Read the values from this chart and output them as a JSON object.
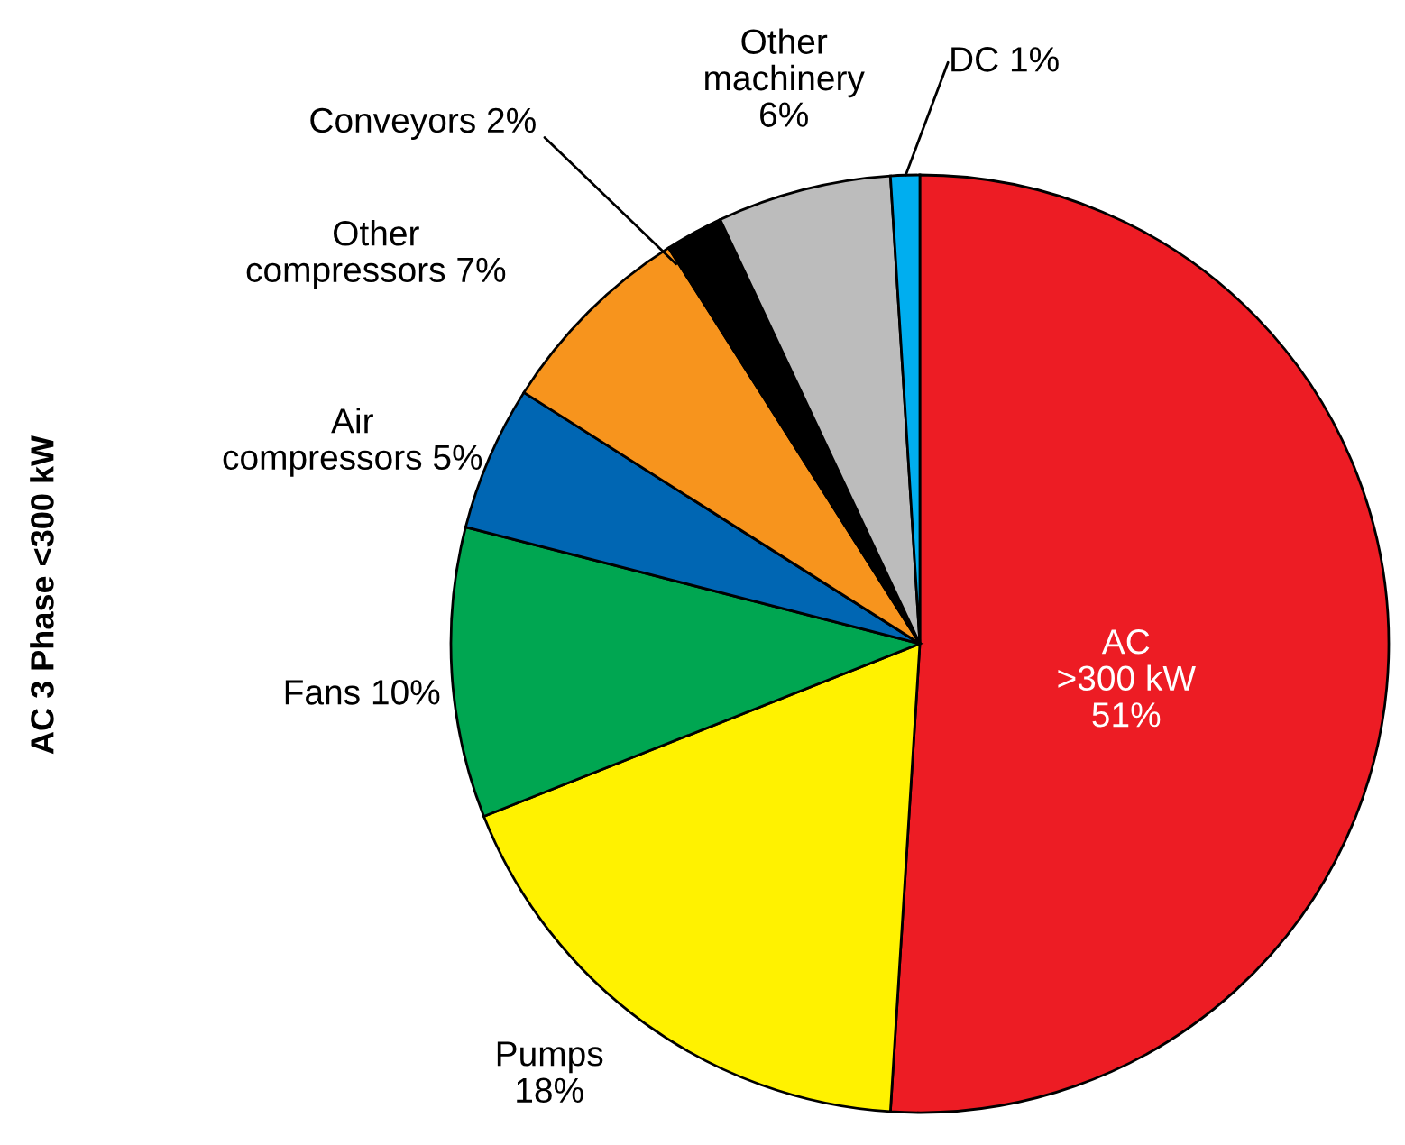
{
  "chart_data": {
    "type": "pie",
    "ylabel": "AC 3 Phase <300 kW",
    "categories": [
      "AC\n>300 kW",
      "Pumps",
      "Fans",
      "Air\ncompressors",
      "Other\ncompressors",
      "Conveyors",
      "Other\nmachinery",
      "DC"
    ],
    "values": [
      51,
      18,
      10,
      5,
      7,
      2,
      6,
      1
    ],
    "value_labels": [
      "51%",
      "18%",
      "10%",
      "5%",
      "7%",
      "2%",
      "6%",
      "1%"
    ],
    "colors": [
      "#ed1c24",
      "#fff200",
      "#00a651",
      "#0066b3",
      "#f7941d",
      "#000000",
      "#bcbcbc",
      "#00aeef"
    ],
    "legend": false
  }
}
